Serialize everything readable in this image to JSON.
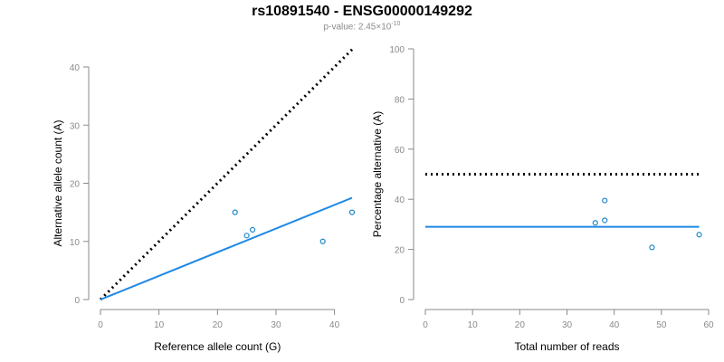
{
  "title": "rs10891540 - ENSG00000149292",
  "subtitle": {
    "prefix": "p-value: 2.45×10",
    "exponent": "-10"
  },
  "colors": {
    "points": "#1f88c8",
    "fit": "#1e88e5",
    "reference": "#000000",
    "axis": "#8a8a8a"
  },
  "chart_data": [
    {
      "type": "scatter",
      "xlabel": "Reference allele count (G)",
      "ylabel": "Alternative allele count (A)",
      "xlim": [
        0,
        43
      ],
      "ylim": [
        0,
        40
      ],
      "xticks": [
        0,
        10,
        20,
        30,
        40
      ],
      "yticks": [
        0,
        10,
        20,
        30,
        40
      ],
      "points": [
        {
          "x": 23,
          "y": 15
        },
        {
          "x": 25,
          "y": 11
        },
        {
          "x": 26,
          "y": 12
        },
        {
          "x": 38,
          "y": 10
        },
        {
          "x": 43,
          "y": 15
        }
      ],
      "fit_line": {
        "from": [
          0,
          0
        ],
        "to": [
          43,
          17.5
        ]
      },
      "reference_line": {
        "from": [
          0,
          0
        ],
        "to": [
          43,
          43
        ]
      }
    },
    {
      "type": "scatter",
      "xlabel": "Total number of reads",
      "ylabel": "Percentage alternative (A)",
      "xlim": [
        0,
        60
      ],
      "ylim": [
        0,
        100
      ],
      "xticks": [
        0,
        10,
        20,
        30,
        40,
        50,
        60
      ],
      "yticks": [
        0,
        20,
        40,
        60,
        80,
        100
      ],
      "points": [
        {
          "x": 36,
          "y": 30.6
        },
        {
          "x": 38,
          "y": 31.6
        },
        {
          "x": 38,
          "y": 39.5
        },
        {
          "x": 48,
          "y": 20.8
        },
        {
          "x": 58,
          "y": 25.9
        }
      ],
      "fit_line": {
        "from": [
          0,
          29
        ],
        "to": [
          58,
          29
        ]
      },
      "reference_line": {
        "from": [
          0,
          50
        ],
        "to": [
          58,
          50
        ]
      }
    }
  ]
}
